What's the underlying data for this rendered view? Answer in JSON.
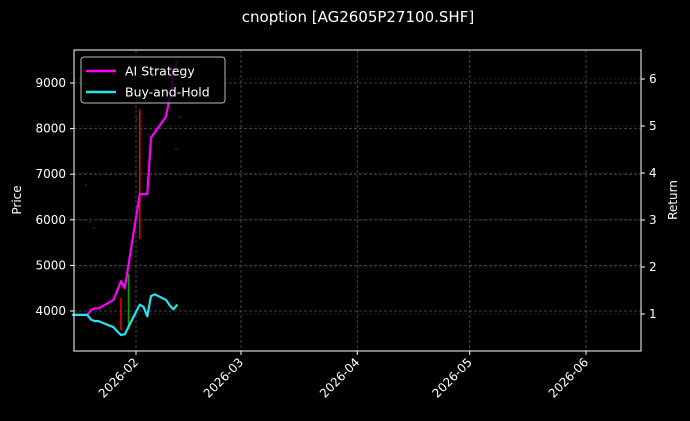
{
  "chart_data": {
    "type": "line",
    "title": "cnoption [AG2605P27100.SHF]",
    "xlabel": "",
    "ylabel": "Price",
    "ylabel_right": "Return",
    "x_ticks": [
      "2026-02",
      "2026-03",
      "2026-04",
      "2026-05",
      "2026-06"
    ],
    "y_ticks_left": [
      4000,
      5000,
      6000,
      7000,
      8000,
      9000
    ],
    "y_ticks_right": [
      1,
      2,
      3,
      4,
      5,
      6
    ],
    "ylim_left": [
      3100,
      9750
    ],
    "ylim_right": [
      0.2,
      6.6
    ],
    "grid": true,
    "legend_position": "upper left",
    "legend": [
      "AI Strategy",
      "Buy-and-Hold"
    ],
    "series": [
      {
        "name": "AI Strategy",
        "axis": "right",
        "color": "#ff00ff",
        "x": [
          "2026-01-15",
          "2026-01-19",
          "2026-01-20",
          "2026-01-21",
          "2026-01-22",
          "2026-01-26",
          "2026-01-27",
          "2026-01-28",
          "2026-01-29",
          "2026-02-02",
          "2026-02-03",
          "2026-02-04",
          "2026-02-05",
          "2026-02-09",
          "2026-02-10",
          "2026-02-11",
          "2026-02-12"
        ],
        "values": [
          0.98,
          0.98,
          1.08,
          1.12,
          1.12,
          1.3,
          1.5,
          1.7,
          1.55,
          3.55,
          3.55,
          3.55,
          4.75,
          5.2,
          5.6,
          6.1,
          6.4
        ]
      },
      {
        "name": "Buy-and-Hold",
        "axis": "right",
        "color": "#22e5f0",
        "x": [
          "2026-01-15",
          "2026-01-19",
          "2026-01-20",
          "2026-01-21",
          "2026-01-22",
          "2026-01-26",
          "2026-01-27",
          "2026-01-28",
          "2026-01-29",
          "2026-02-02",
          "2026-02-03",
          "2026-02-04",
          "2026-02-05",
          "2026-02-06",
          "2026-02-09",
          "2026-02-10",
          "2026-02-11",
          "2026-02-12"
        ],
        "values": [
          0.98,
          0.98,
          0.88,
          0.85,
          0.85,
          0.72,
          0.63,
          0.55,
          0.57,
          1.2,
          1.15,
          0.95,
          1.38,
          1.42,
          1.3,
          1.18,
          1.1,
          1.2
        ]
      }
    ],
    "candles": [
      {
        "x": "2026-01-28",
        "low": 3580,
        "high": 4290,
        "color": "#ff0000"
      },
      {
        "x": "2026-01-30",
        "low": 3600,
        "high": 4820,
        "color": "#00aa00"
      },
      {
        "x": "2026-02-02",
        "low": 5580,
        "high": 8420,
        "color": "#ff0000"
      }
    ]
  }
}
